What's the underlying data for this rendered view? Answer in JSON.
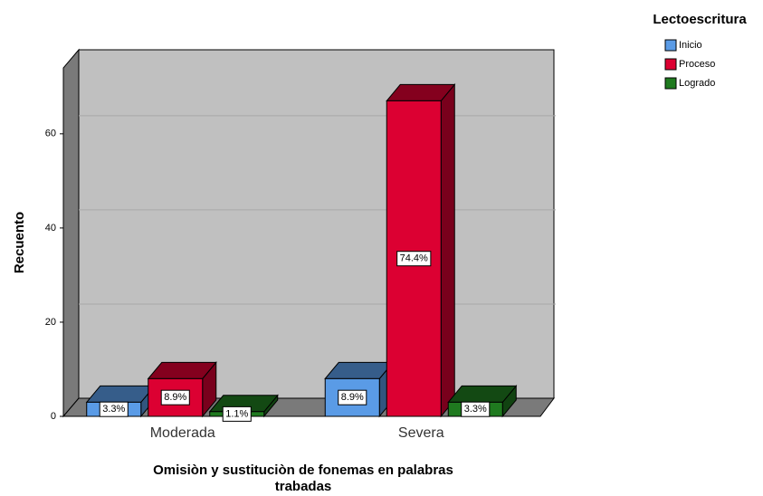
{
  "chart_data": {
    "type": "bar3d",
    "x_label": [
      "Omisiòn y sustituciòn de fonemas en palabras",
      "trabadas"
    ],
    "y_label": "Recuento",
    "legend_title": "Lectoescritura",
    "categories": [
      "Moderada",
      "Severa"
    ],
    "series": [
      {
        "name": "Inicio",
        "color": "#5a9be6",
        "values": [
          3,
          8
        ],
        "percent_labels": [
          "3.3%",
          "8.9%"
        ]
      },
      {
        "name": "Proceso",
        "color": "#dc0032",
        "values": [
          8,
          67
        ],
        "percent_labels": [
          "8.9%",
          "74.4%"
        ]
      },
      {
        "name": "Logrado",
        "color": "#1f7a1f",
        "values": [
          1,
          3
        ],
        "percent_labels": [
          "1.1%",
          "3.3%"
        ]
      }
    ],
    "ylim": [
      0,
      74
    ],
    "yticks": [
      0,
      20,
      40,
      60
    ],
    "grid": true,
    "legend": "top-right"
  }
}
